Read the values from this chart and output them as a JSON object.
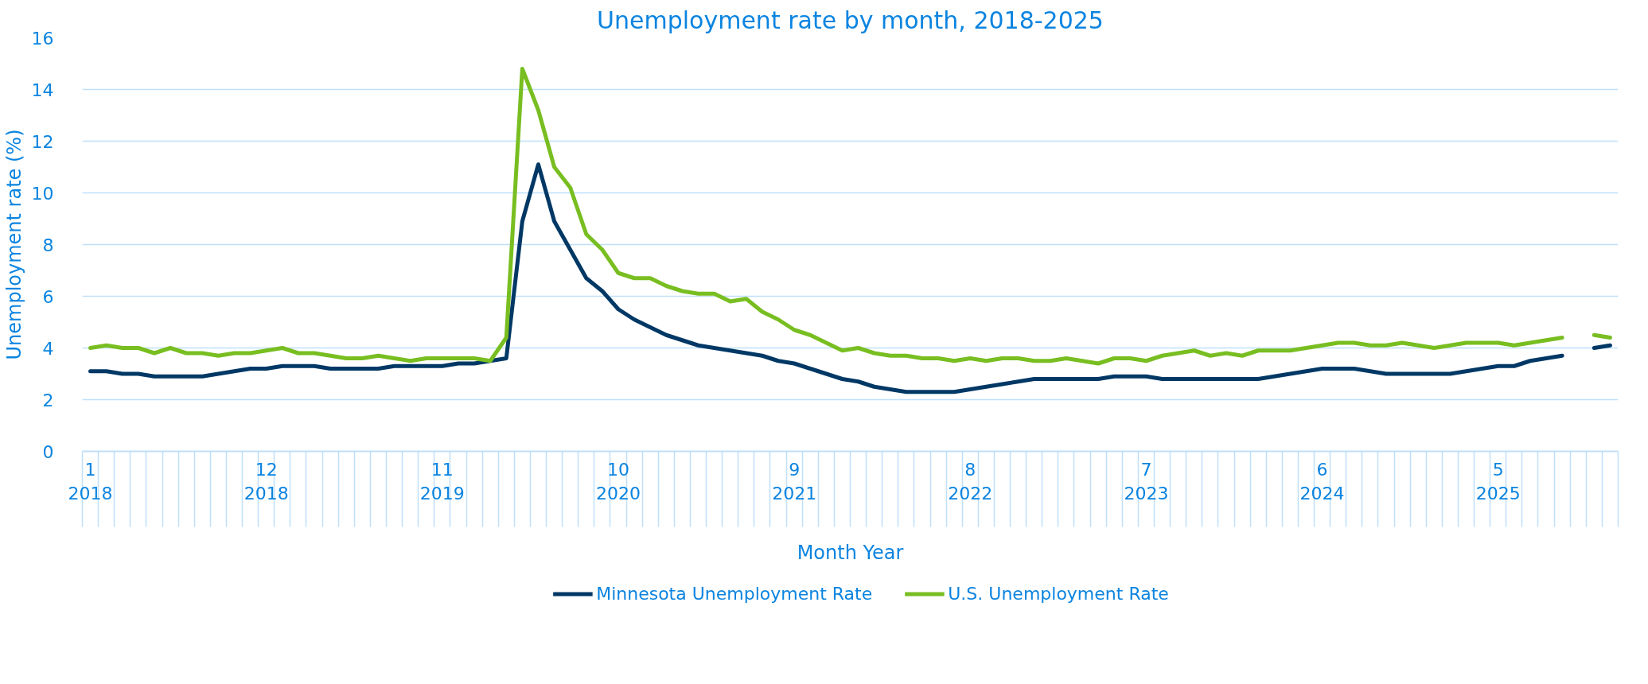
{
  "chart_data": {
    "type": "line",
    "title": "Unemployment rate by month, 2018-2025",
    "xlabel": "Month Year",
    "ylabel": "Unemployment rate (%)",
    "categories": [
      "1\n2018",
      null,
      null,
      null,
      null,
      null,
      null,
      null,
      null,
      null,
      null,
      "12\n2018",
      null,
      null,
      null,
      null,
      null,
      null,
      null,
      null,
      null,
      null,
      "11\n2019",
      null,
      null,
      null,
      null,
      null,
      null,
      null,
      null,
      null,
      null,
      "10\n2020",
      null,
      null,
      null,
      null,
      null,
      null,
      null,
      null,
      null,
      null,
      "9\n2021",
      null,
      null,
      null,
      null,
      null,
      null,
      null,
      null,
      null,
      null,
      "8\n2022",
      null,
      null,
      null,
      null,
      null,
      null,
      null,
      null,
      null,
      null,
      "7\n2023",
      null,
      null,
      null,
      null,
      null,
      null,
      null,
      null,
      null,
      null,
      "6\n2024",
      null,
      null,
      null,
      null,
      null,
      null,
      null,
      null,
      null,
      null,
      "5\n2025",
      null,
      null,
      null,
      null,
      null,
      null,
      null
    ],
    "series": [
      {
        "name": "Minnesota Unemployment Rate",
        "color": "#003865",
        "values": [
          3.1,
          3.1,
          3.0,
          3.0,
          2.9,
          2.9,
          2.9,
          2.9,
          3.0,
          3.1,
          3.2,
          3.2,
          3.3,
          3.3,
          3.3,
          3.2,
          3.2,
          3.2,
          3.2,
          3.3,
          3.3,
          3.3,
          3.3,
          3.4,
          3.4,
          3.5,
          3.6,
          8.9,
          11.1,
          8.9,
          7.8,
          6.7,
          6.2,
          5.5,
          5.1,
          4.8,
          4.5,
          4.3,
          4.1,
          4.0,
          3.9,
          3.8,
          3.7,
          3.5,
          3.4,
          3.2,
          3.0,
          2.8,
          2.7,
          2.5,
          2.4,
          2.3,
          2.3,
          2.3,
          2.3,
          2.4,
          2.5,
          2.6,
          2.7,
          2.8,
          2.8,
          2.8,
          2.8,
          2.8,
          2.9,
          2.9,
          2.9,
          2.8,
          2.8,
          2.8,
          2.8,
          2.8,
          2.8,
          2.8,
          2.9,
          3.0,
          3.1,
          3.2,
          3.2,
          3.2,
          3.1,
          3.0,
          3.0,
          3.0,
          3.0,
          3.0,
          3.1,
          3.2,
          3.3,
          3.3,
          3.5,
          3.6,
          3.7,
          null,
          4.0,
          4.1
        ]
      },
      {
        "name": "U.S. Unemployment Rate",
        "color": "#78be21",
        "values": [
          4.0,
          4.1,
          4.0,
          4.0,
          3.8,
          4.0,
          3.8,
          3.8,
          3.7,
          3.8,
          3.8,
          3.9,
          4.0,
          3.8,
          3.8,
          3.7,
          3.6,
          3.6,
          3.7,
          3.6,
          3.5,
          3.6,
          3.6,
          3.6,
          3.6,
          3.5,
          4.4,
          14.8,
          13.2,
          11.0,
          10.2,
          8.4,
          7.8,
          6.9,
          6.7,
          6.7,
          6.4,
          6.2,
          6.1,
          6.1,
          5.8,
          5.9,
          5.4,
          5.1,
          4.7,
          4.5,
          4.2,
          3.9,
          4.0,
          3.8,
          3.7,
          3.7,
          3.6,
          3.6,
          3.5,
          3.6,
          3.5,
          3.6,
          3.6,
          3.5,
          3.5,
          3.6,
          3.5,
          3.4,
          3.6,
          3.6,
          3.5,
          3.7,
          3.8,
          3.9,
          3.7,
          3.8,
          3.7,
          3.9,
          3.9,
          3.9,
          4.0,
          4.1,
          4.2,
          4.2,
          4.1,
          4.1,
          4.2,
          4.1,
          4.0,
          4.1,
          4.2,
          4.2,
          4.2,
          4.1,
          4.2,
          4.3,
          4.4,
          null,
          4.5,
          4.4
        ]
      }
    ],
    "ylim": [
      0,
      16
    ],
    "yticks": [
      0,
      2,
      4,
      6,
      8,
      10,
      12,
      14,
      16
    ],
    "grid": "y",
    "legend": "bottom",
    "line_style": "solid",
    "marker": "none"
  }
}
